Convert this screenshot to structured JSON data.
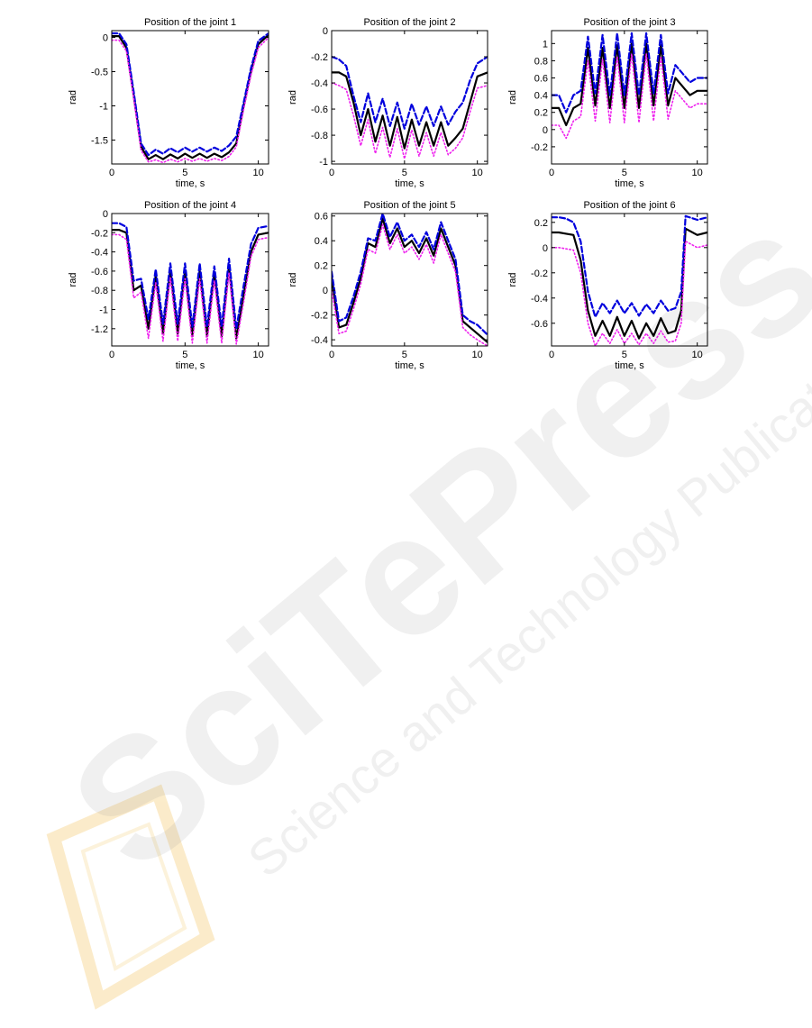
{
  "watermark": {
    "brand": "SciTePress",
    "tagline": "Science and Technology Publications"
  },
  "colors": {
    "measured": "#000000",
    "upper": "#0000dd",
    "lower": "#ee22ee",
    "axis": "#000000"
  },
  "chart_data": [
    {
      "type": "line",
      "title": "Position of the joint 1",
      "xlabel": "time, s",
      "ylabel": "rad",
      "xlim": [
        0,
        10.7
      ],
      "ylim": [
        -1.85,
        0.1
      ],
      "xticks": [
        0,
        5,
        10
      ],
      "yticks": [
        -1.5,
        -1,
        -0.5,
        0
      ],
      "ytick_labels": [
        "-1.5",
        "-1",
        "-0.5",
        "0"
      ],
      "x": [
        0,
        0.5,
        1.0,
        1.5,
        2.0,
        2.5,
        3.0,
        3.5,
        4.0,
        4.5,
        5.0,
        5.5,
        6.0,
        6.5,
        7.0,
        7.5,
        8.0,
        8.5,
        9.0,
        9.5,
        10.0,
        10.7
      ],
      "series": [
        {
          "style": "solid",
          "values": [
            0.02,
            0.02,
            -0.15,
            -0.85,
            -1.6,
            -1.78,
            -1.72,
            -1.78,
            -1.71,
            -1.77,
            -1.7,
            -1.76,
            -1.7,
            -1.76,
            -1.7,
            -1.75,
            -1.68,
            -1.55,
            -1.0,
            -0.5,
            -0.1,
            0.04
          ]
        },
        {
          "style": "dashed",
          "values": [
            0.06,
            0.06,
            -0.1,
            -0.8,
            -1.55,
            -1.72,
            -1.64,
            -1.7,
            -1.62,
            -1.68,
            -1.61,
            -1.67,
            -1.61,
            -1.67,
            -1.61,
            -1.66,
            -1.58,
            -1.45,
            -0.95,
            -0.45,
            -0.05,
            0.06
          ]
        },
        {
          "style": "dotted",
          "values": [
            -0.04,
            -0.04,
            -0.2,
            -0.9,
            -1.65,
            -1.82,
            -1.79,
            -1.83,
            -1.78,
            -1.82,
            -1.77,
            -1.81,
            -1.77,
            -1.81,
            -1.77,
            -1.8,
            -1.74,
            -1.6,
            -1.05,
            -0.55,
            -0.15,
            0.0
          ]
        }
      ]
    },
    {
      "type": "line",
      "title": "Position of the joint 2",
      "xlabel": "time, s",
      "ylabel": "rad",
      "xlim": [
        0,
        10.7
      ],
      "ylim": [
        -1.02,
        0.0
      ],
      "xticks": [
        0,
        5,
        10
      ],
      "yticks": [
        -1,
        -0.8,
        -0.6,
        -0.4,
        -0.2,
        0
      ],
      "ytick_labels": [
        "-1",
        "-0.8",
        "-0.6",
        "-0.4",
        "-0.2",
        "0"
      ],
      "x": [
        0,
        0.5,
        1.0,
        1.5,
        2.0,
        2.5,
        3.0,
        3.5,
        4.0,
        4.5,
        5.0,
        5.5,
        6.0,
        6.5,
        7.0,
        7.5,
        8.0,
        8.5,
        9.0,
        9.5,
        10.0,
        10.7
      ],
      "series": [
        {
          "style": "solid",
          "values": [
            -0.32,
            -0.32,
            -0.35,
            -0.55,
            -0.8,
            -0.6,
            -0.85,
            -0.65,
            -0.88,
            -0.66,
            -0.9,
            -0.68,
            -0.88,
            -0.7,
            -0.88,
            -0.7,
            -0.88,
            -0.82,
            -0.75,
            -0.55,
            -0.35,
            -0.32
          ]
        },
        {
          "style": "dashed",
          "values": [
            -0.2,
            -0.22,
            -0.27,
            -0.5,
            -0.7,
            -0.48,
            -0.7,
            -0.52,
            -0.73,
            -0.55,
            -0.75,
            -0.56,
            -0.72,
            -0.58,
            -0.73,
            -0.58,
            -0.72,
            -0.62,
            -0.55,
            -0.38,
            -0.25,
            -0.2
          ]
        },
        {
          "style": "dotted",
          "values": [
            -0.4,
            -0.42,
            -0.45,
            -0.65,
            -0.88,
            -0.68,
            -0.94,
            -0.74,
            -0.97,
            -0.75,
            -0.98,
            -0.76,
            -0.96,
            -0.78,
            -0.96,
            -0.78,
            -0.95,
            -0.9,
            -0.82,
            -0.62,
            -0.44,
            -0.42
          ]
        }
      ]
    },
    {
      "type": "line",
      "title": "Position of the joint 3",
      "xlabel": "time, s",
      "ylabel": "rad",
      "xlim": [
        0,
        10.7
      ],
      "ylim": [
        -0.4,
        1.15
      ],
      "xticks": [
        0,
        5,
        10
      ],
      "yticks": [
        -0.2,
        0,
        0.2,
        0.4,
        0.6,
        0.8,
        1
      ],
      "ytick_labels": [
        "-0.2",
        "0",
        "0.2",
        "0.4",
        "0.6",
        "0.8",
        "1"
      ],
      "x": [
        0,
        0.5,
        1.0,
        1.5,
        2.0,
        2.5,
        3.0,
        3.5,
        4.0,
        4.5,
        5.0,
        5.5,
        6.0,
        6.5,
        7.0,
        7.5,
        8.0,
        8.5,
        9.0,
        9.5,
        10.0,
        10.7
      ],
      "series": [
        {
          "style": "solid",
          "values": [
            0.25,
            0.25,
            0.05,
            0.25,
            0.3,
            0.95,
            0.28,
            0.95,
            0.25,
            0.98,
            0.25,
            1.0,
            0.25,
            1.0,
            0.28,
            0.98,
            0.28,
            0.6,
            0.5,
            0.4,
            0.45,
            0.45
          ]
        },
        {
          "style": "dashed",
          "values": [
            0.4,
            0.4,
            0.2,
            0.4,
            0.45,
            1.08,
            0.42,
            1.1,
            0.4,
            1.12,
            0.4,
            1.12,
            0.4,
            1.12,
            0.42,
            1.1,
            0.42,
            0.75,
            0.65,
            0.55,
            0.6,
            0.6
          ]
        },
        {
          "style": "dotted",
          "values": [
            0.05,
            0.05,
            -0.1,
            0.1,
            0.15,
            0.8,
            0.1,
            0.82,
            0.08,
            0.85,
            0.08,
            0.88,
            0.08,
            0.88,
            0.1,
            0.85,
            0.12,
            0.45,
            0.35,
            0.25,
            0.3,
            0.3
          ]
        }
      ]
    },
    {
      "type": "line",
      "title": "Position of the joint 4",
      "xlabel": "time, s",
      "ylabel": "rad",
      "xlim": [
        0,
        10.7
      ],
      "ylim": [
        -1.38,
        0.0
      ],
      "xticks": [
        0,
        5,
        10
      ],
      "yticks": [
        -1.2,
        -1,
        -0.8,
        -0.6,
        -0.4,
        -0.2,
        0
      ],
      "ytick_labels": [
        "-1.2",
        "-1",
        "-0.8",
        "-0.6",
        "-0.4",
        "-0.2",
        "0"
      ],
      "x": [
        0,
        0.5,
        1.0,
        1.5,
        2.0,
        2.5,
        3.0,
        3.5,
        4.0,
        4.5,
        5.0,
        5.5,
        6.0,
        6.5,
        7.0,
        7.5,
        8.0,
        8.5,
        9.0,
        9.5,
        10.0,
        10.7
      ],
      "series": [
        {
          "style": "solid",
          "values": [
            -0.17,
            -0.17,
            -0.2,
            -0.8,
            -0.75,
            -1.2,
            -0.65,
            -1.25,
            -0.6,
            -1.25,
            -0.6,
            -1.28,
            -0.6,
            -1.28,
            -0.62,
            -1.28,
            -0.55,
            -1.3,
            -0.85,
            -0.4,
            -0.22,
            -0.2
          ]
        },
        {
          "style": "dashed",
          "values": [
            -0.1,
            -0.1,
            -0.14,
            -0.7,
            -0.68,
            -1.1,
            -0.58,
            -1.15,
            -0.52,
            -1.15,
            -0.52,
            -1.18,
            -0.52,
            -1.18,
            -0.55,
            -1.18,
            -0.47,
            -1.2,
            -0.75,
            -0.32,
            -0.15,
            -0.13
          ]
        },
        {
          "style": "dotted",
          "values": [
            -0.22,
            -0.22,
            -0.27,
            -0.88,
            -0.82,
            -1.3,
            -0.72,
            -1.33,
            -0.67,
            -1.33,
            -0.68,
            -1.35,
            -0.68,
            -1.35,
            -0.7,
            -1.35,
            -0.62,
            -1.36,
            -0.92,
            -0.45,
            -0.27,
            -0.25
          ]
        }
      ]
    },
    {
      "type": "line",
      "title": "Position of the joint 5",
      "xlabel": "time, s",
      "ylabel": "rad",
      "xlim": [
        0,
        10.7
      ],
      "ylim": [
        -0.45,
        0.62
      ],
      "xticks": [
        0,
        5,
        10
      ],
      "yticks": [
        -0.4,
        -0.2,
        0,
        0.2,
        0.4,
        0.6
      ],
      "ytick_labels": [
        "-0.4",
        "-0.2",
        "0",
        "0.2",
        "0.4",
        "0.6"
      ],
      "x": [
        0,
        0.5,
        1.0,
        1.5,
        2.0,
        2.5,
        3.0,
        3.5,
        4.0,
        4.5,
        5.0,
        5.5,
        6.0,
        6.5,
        7.0,
        7.5,
        8.0,
        8.5,
        9.0,
        9.5,
        10.0,
        10.7
      ],
      "series": [
        {
          "style": "solid",
          "values": [
            0.1,
            -0.3,
            -0.28,
            -0.1,
            0.1,
            0.38,
            0.35,
            0.58,
            0.38,
            0.5,
            0.35,
            0.4,
            0.3,
            0.42,
            0.28,
            0.5,
            0.35,
            0.2,
            -0.25,
            -0.3,
            -0.35,
            -0.42
          ]
        },
        {
          "style": "dashed",
          "values": [
            0.15,
            -0.25,
            -0.22,
            -0.05,
            0.15,
            0.42,
            0.4,
            0.62,
            0.43,
            0.55,
            0.4,
            0.45,
            0.35,
            0.47,
            0.33,
            0.55,
            0.4,
            0.25,
            -0.2,
            -0.25,
            -0.28,
            -0.36
          ]
        },
        {
          "style": "dotted",
          "values": [
            0.0,
            -0.35,
            -0.33,
            -0.15,
            0.05,
            0.33,
            0.3,
            0.53,
            0.33,
            0.45,
            0.3,
            0.35,
            0.25,
            0.37,
            0.22,
            0.45,
            0.3,
            0.15,
            -0.3,
            -0.36,
            -0.4,
            -0.45
          ]
        }
      ]
    },
    {
      "type": "line",
      "title": "Position of the joint 6",
      "xlabel": "time, s",
      "ylabel": "rad",
      "xlim": [
        0,
        10.7
      ],
      "ylim": [
        -0.78,
        0.27
      ],
      "xticks": [
        0,
        5,
        10
      ],
      "yticks": [
        -0.6,
        -0.4,
        -0.2,
        0,
        0.2
      ],
      "ytick_labels": [
        "-0.6",
        "-0.4",
        "-0.2",
        "0",
        "0.2"
      ],
      "x": [
        0,
        0.5,
        1.0,
        1.5,
        2.0,
        2.5,
        3.0,
        3.5,
        4.0,
        4.5,
        5.0,
        5.5,
        6.0,
        6.5,
        7.0,
        7.5,
        8.0,
        8.5,
        8.9,
        9.2,
        10.0,
        10.7
      ],
      "series": [
        {
          "style": "solid",
          "values": [
            0.12,
            0.12,
            0.11,
            0.1,
            -0.1,
            -0.5,
            -0.7,
            -0.58,
            -0.7,
            -0.55,
            -0.7,
            -0.58,
            -0.72,
            -0.6,
            -0.7,
            -0.56,
            -0.68,
            -0.66,
            -0.5,
            0.15,
            0.1,
            0.12
          ]
        },
        {
          "style": "dashed",
          "values": [
            0.24,
            0.24,
            0.23,
            0.2,
            0.05,
            -0.35,
            -0.55,
            -0.44,
            -0.52,
            -0.42,
            -0.52,
            -0.44,
            -0.54,
            -0.45,
            -0.52,
            -0.42,
            -0.5,
            -0.48,
            -0.35,
            0.25,
            0.22,
            0.24
          ]
        },
        {
          "style": "dotted",
          "values": [
            0.0,
            0.0,
            -0.01,
            -0.02,
            -0.2,
            -0.6,
            -0.78,
            -0.68,
            -0.76,
            -0.65,
            -0.76,
            -0.68,
            -0.77,
            -0.68,
            -0.76,
            -0.66,
            -0.75,
            -0.74,
            -0.6,
            0.05,
            0.0,
            0.02
          ]
        }
      ]
    }
  ]
}
